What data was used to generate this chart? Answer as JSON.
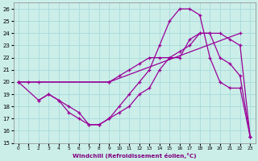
{
  "xlabel": "Windchill (Refroidissement éolien,°C)",
  "bg_color": "#cceee8",
  "grid_color": "#aadddd",
  "line_color": "#990099",
  "xlim": [
    -0.5,
    23.5
  ],
  "ylim": [
    15,
    26.5
  ],
  "xticks": [
    0,
    1,
    2,
    3,
    4,
    5,
    6,
    7,
    8,
    9,
    10,
    11,
    12,
    13,
    14,
    15,
    16,
    17,
    18,
    19,
    20,
    21,
    22,
    23
  ],
  "yticks": [
    15,
    16,
    17,
    18,
    19,
    20,
    21,
    22,
    23,
    24,
    25,
    26
  ],
  "curve1_x": [
    0,
    1,
    2,
    9,
    22
  ],
  "curve1_y": [
    20,
    20,
    20,
    20,
    24
  ],
  "curve2_x": [
    0,
    2,
    3,
    4,
    5,
    6,
    7,
    8,
    9,
    10,
    11,
    12,
    13,
    14,
    15,
    16,
    17,
    18,
    19,
    20,
    21,
    22,
    23
  ],
  "curve2_y": [
    20,
    18.5,
    19,
    18.5,
    17.5,
    17,
    16.5,
    16.5,
    17,
    18,
    19,
    20,
    21,
    23,
    25,
    26,
    26,
    25.5,
    22,
    20,
    19.5,
    19.5,
    15.5
  ],
  "curve3_x": [
    2,
    3,
    4,
    5,
    6,
    7,
    8,
    9,
    10,
    11,
    12,
    13,
    14,
    15,
    16,
    17,
    18,
    19,
    20,
    21,
    22,
    23
  ],
  "curve3_y": [
    18.5,
    19,
    18.5,
    18,
    17.5,
    16.5,
    16.5,
    17,
    17.5,
    18,
    19,
    19.5,
    21,
    22,
    22,
    23.5,
    24,
    24,
    22,
    21.5,
    20.5,
    15.5
  ],
  "curve4_x": [
    0,
    9,
    10,
    11,
    12,
    13,
    14,
    15,
    16,
    17,
    18,
    19,
    20,
    21,
    22,
    23
  ],
  "curve4_y": [
    20,
    20,
    20.5,
    21,
    21.5,
    22,
    22,
    22,
    22.5,
    23,
    24,
    24,
    24,
    23.5,
    23,
    15.5
  ]
}
